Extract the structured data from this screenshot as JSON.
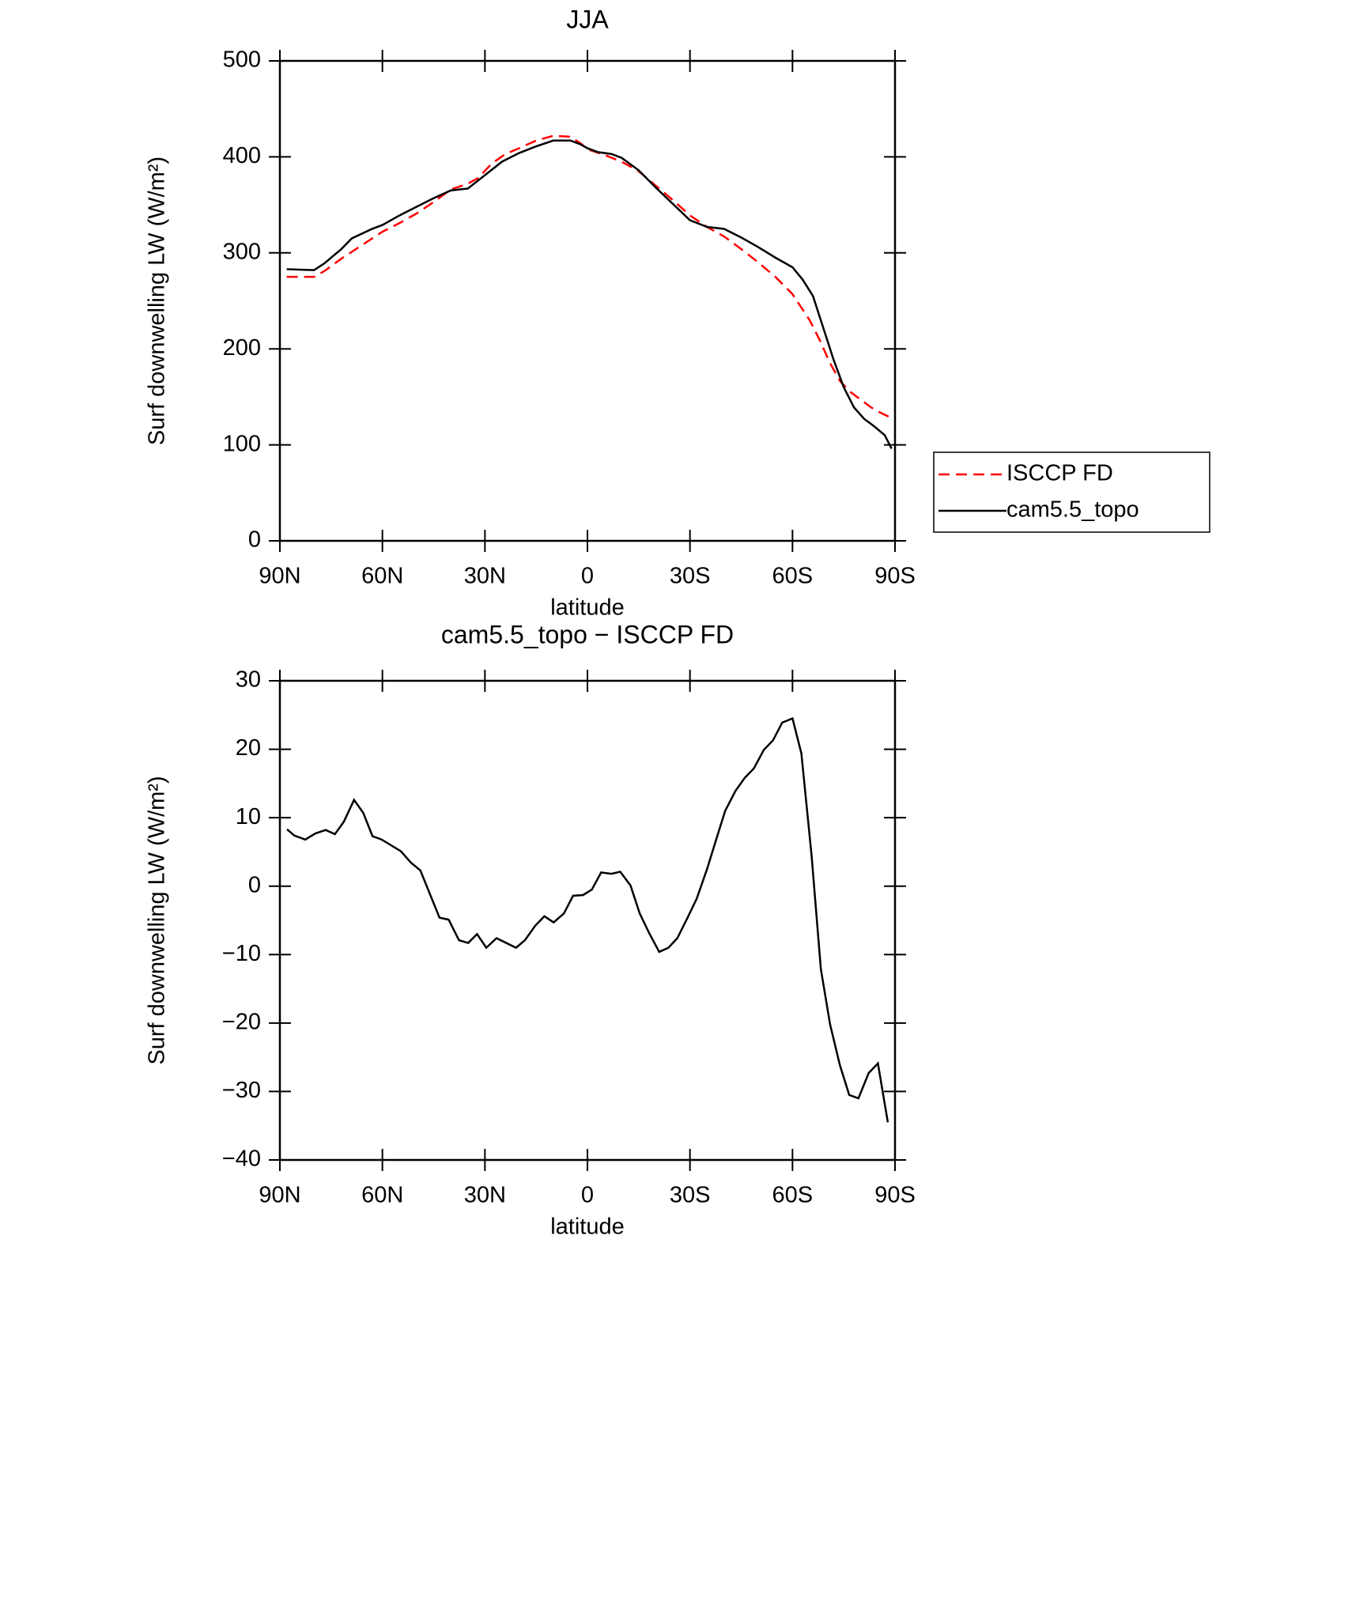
{
  "chart_data": [
    {
      "type": "line",
      "title": "JJA",
      "xlabel": "latitude",
      "ylabel": "Surf downwelling LW (W/m²)",
      "xlim": [
        90,
        -90
      ],
      "xticks": [
        {
          "value": 90,
          "label": "90N"
        },
        {
          "value": 60,
          "label": "60N"
        },
        {
          "value": 30,
          "label": "30N"
        },
        0,
        {
          "value": -30,
          "label": "30S"
        },
        {
          "value": -60,
          "label": "60S"
        },
        {
          "value": -90,
          "label": "90S"
        }
      ],
      "ylim": [
        0,
        500
      ],
      "yticks": [
        0,
        100,
        200,
        300,
        400,
        500
      ],
      "legend": "right",
      "series": [
        {
          "name": "ISCCP FD",
          "color": "#ff0000",
          "dash": true,
          "x": [
            88,
            80,
            77,
            72,
            66,
            60,
            55,
            50,
            45,
            40,
            35,
            32,
            28,
            24,
            20,
            15,
            10,
            5,
            2,
            0,
            -5,
            -10,
            -15,
            -20,
            -25,
            -30,
            -35,
            -40,
            -45,
            -50,
            -55,
            -60,
            -65,
            -68,
            -71,
            -74,
            -77,
            -80,
            -83,
            -86,
            -89
          ],
          "values": [
            275,
            275,
            281,
            294,
            308,
            322,
            331,
            341,
            353,
            366,
            372,
            378,
            393,
            403,
            409,
            417,
            422,
            421,
            414,
            408,
            402,
            395,
            385,
            370,
            355,
            339,
            327,
            317,
            304,
            290,
            275,
            257,
            230,
            209,
            185,
            166,
            155,
            147,
            139,
            133,
            128
          ]
        },
        {
          "name": "cam5.5_topo",
          "color": "#000000",
          "dash": false,
          "x": [
            88,
            80,
            77,
            72,
            69,
            66,
            63,
            60,
            55,
            50,
            45,
            40,
            35,
            30,
            25,
            20,
            15,
            10,
            5,
            2,
            0,
            -3,
            -7,
            -10,
            -15,
            -20,
            -25,
            -30,
            -35,
            -40,
            -45,
            -50,
            -55,
            -60,
            -63,
            -66,
            -69,
            -72,
            -75,
            -78,
            -81,
            -84,
            -87,
            -89
          ],
          "values": [
            283,
            282,
            289,
            304,
            315,
            320,
            325,
            329,
            339,
            348,
            357,
            365,
            367,
            381,
            395,
            404,
            411,
            417,
            417,
            413,
            409,
            405,
            403,
            399,
            386,
            368,
            351,
            334,
            327,
            325,
            316,
            306,
            295,
            285,
            272,
            255,
            222,
            189,
            160,
            139,
            127,
            119,
            110,
            96
          ]
        }
      ]
    },
    {
      "type": "line",
      "title": "cam5.5_topo − ISCCP FD",
      "xlabel": "latitude",
      "ylabel": "Surf downwelling LW (W/m²)",
      "xlim": [
        90,
        -90
      ],
      "xticks": [
        {
          "value": 90,
          "label": "90N"
        },
        {
          "value": 60,
          "label": "60N"
        },
        {
          "value": 30,
          "label": "30N"
        },
        0,
        {
          "value": -30,
          "label": "30S"
        },
        {
          "value": -60,
          "label": "60S"
        },
        {
          "value": -90,
          "label": "90S"
        }
      ],
      "ylim": [
        -40,
        30
      ],
      "yticks": [
        {
          "value": -40,
          "label": "−40"
        },
        {
          "value": -30,
          "label": "−30"
        },
        {
          "value": -20,
          "label": "−20"
        },
        {
          "value": -10,
          "label": "−10"
        },
        0,
        10,
        20,
        30
      ],
      "series": [
        {
          "color": "#000000",
          "dash": false,
          "x": [
            87.9,
            85.8,
            82.6,
            79.6,
            76.6,
            73.9,
            71.3,
            68.3,
            65.6,
            62.9,
            60.2,
            54.6,
            51.6,
            48.9,
            43.3,
            40.6,
            37.6,
            34.9,
            32.3,
            29.6,
            26.6,
            20.9,
            18.3,
            15.3,
            12.6,
            9.9,
            6.9,
            4.2,
            1.3,
            -1.3,
            -4,
            -7,
            -9.6,
            -12.6,
            -15.3,
            -18,
            -21,
            -23.7,
            -26.3,
            -29.3,
            -32,
            -35,
            -37.6,
            -40.3,
            -43.3,
            -46,
            -48.7,
            -51.6,
            -54.3,
            -57,
            -60,
            -62.6,
            -65.6,
            -68.3,
            -71,
            -73.9,
            -76.6,
            -79.3,
            -82.3,
            -85,
            -87.9
          ],
          "values": [
            8.3,
            7.4,
            6.8,
            7.7,
            8.2,
            7.6,
            9.4,
            12.6,
            10.7,
            7.3,
            6.8,
            5.1,
            3.4,
            2.3,
            -4.6,
            -4.9,
            -7.9,
            -8.3,
            -7.0,
            -9.0,
            -7.6,
            -9.0,
            -7.9,
            -5.8,
            -4.4,
            -5.3,
            -4.0,
            -1.4,
            -1.3,
            -0.5,
            2.0,
            1.8,
            2.1,
            0.1,
            -4.0,
            -6.8,
            -9.6,
            -9.0,
            -7.6,
            -4.6,
            -1.8,
            2.5,
            6.7,
            11.0,
            13.9,
            15.8,
            17.2,
            19.9,
            21.3,
            23.9,
            24.5,
            19.4,
            4.4,
            -12.1,
            -20.2,
            -26.2,
            -30.5,
            -31.0,
            -27.3,
            -25.9,
            -34.5
          ]
        }
      ]
    }
  ]
}
